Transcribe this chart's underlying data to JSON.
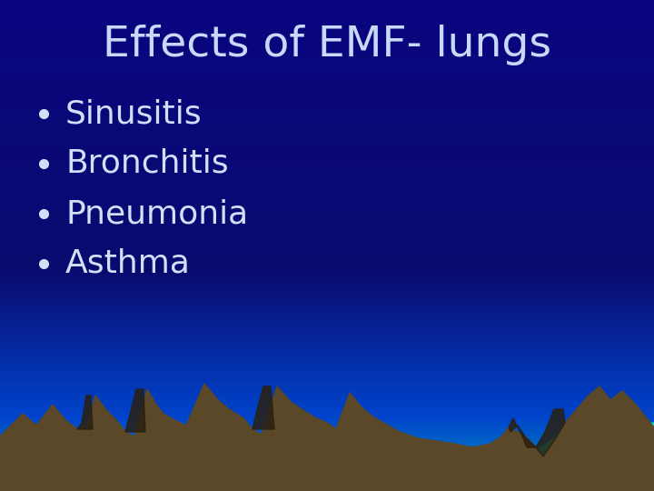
{
  "title": "Effects of EMF- lungs",
  "title_color": "#c8d8f8",
  "title_fontsize": 34,
  "bullet_items": [
    "Sinusitis",
    "Bronchitis",
    "Pneumonia",
    "Asthma"
  ],
  "bullet_color": "#d0e0f8",
  "bullet_fontsize": 26,
  "mountain_color": "#5a4828",
  "mountain_dark": "#2a2010",
  "teal_color": "#00ddc0",
  "figsize": [
    7.2,
    5.4
  ],
  "dpi": 100
}
